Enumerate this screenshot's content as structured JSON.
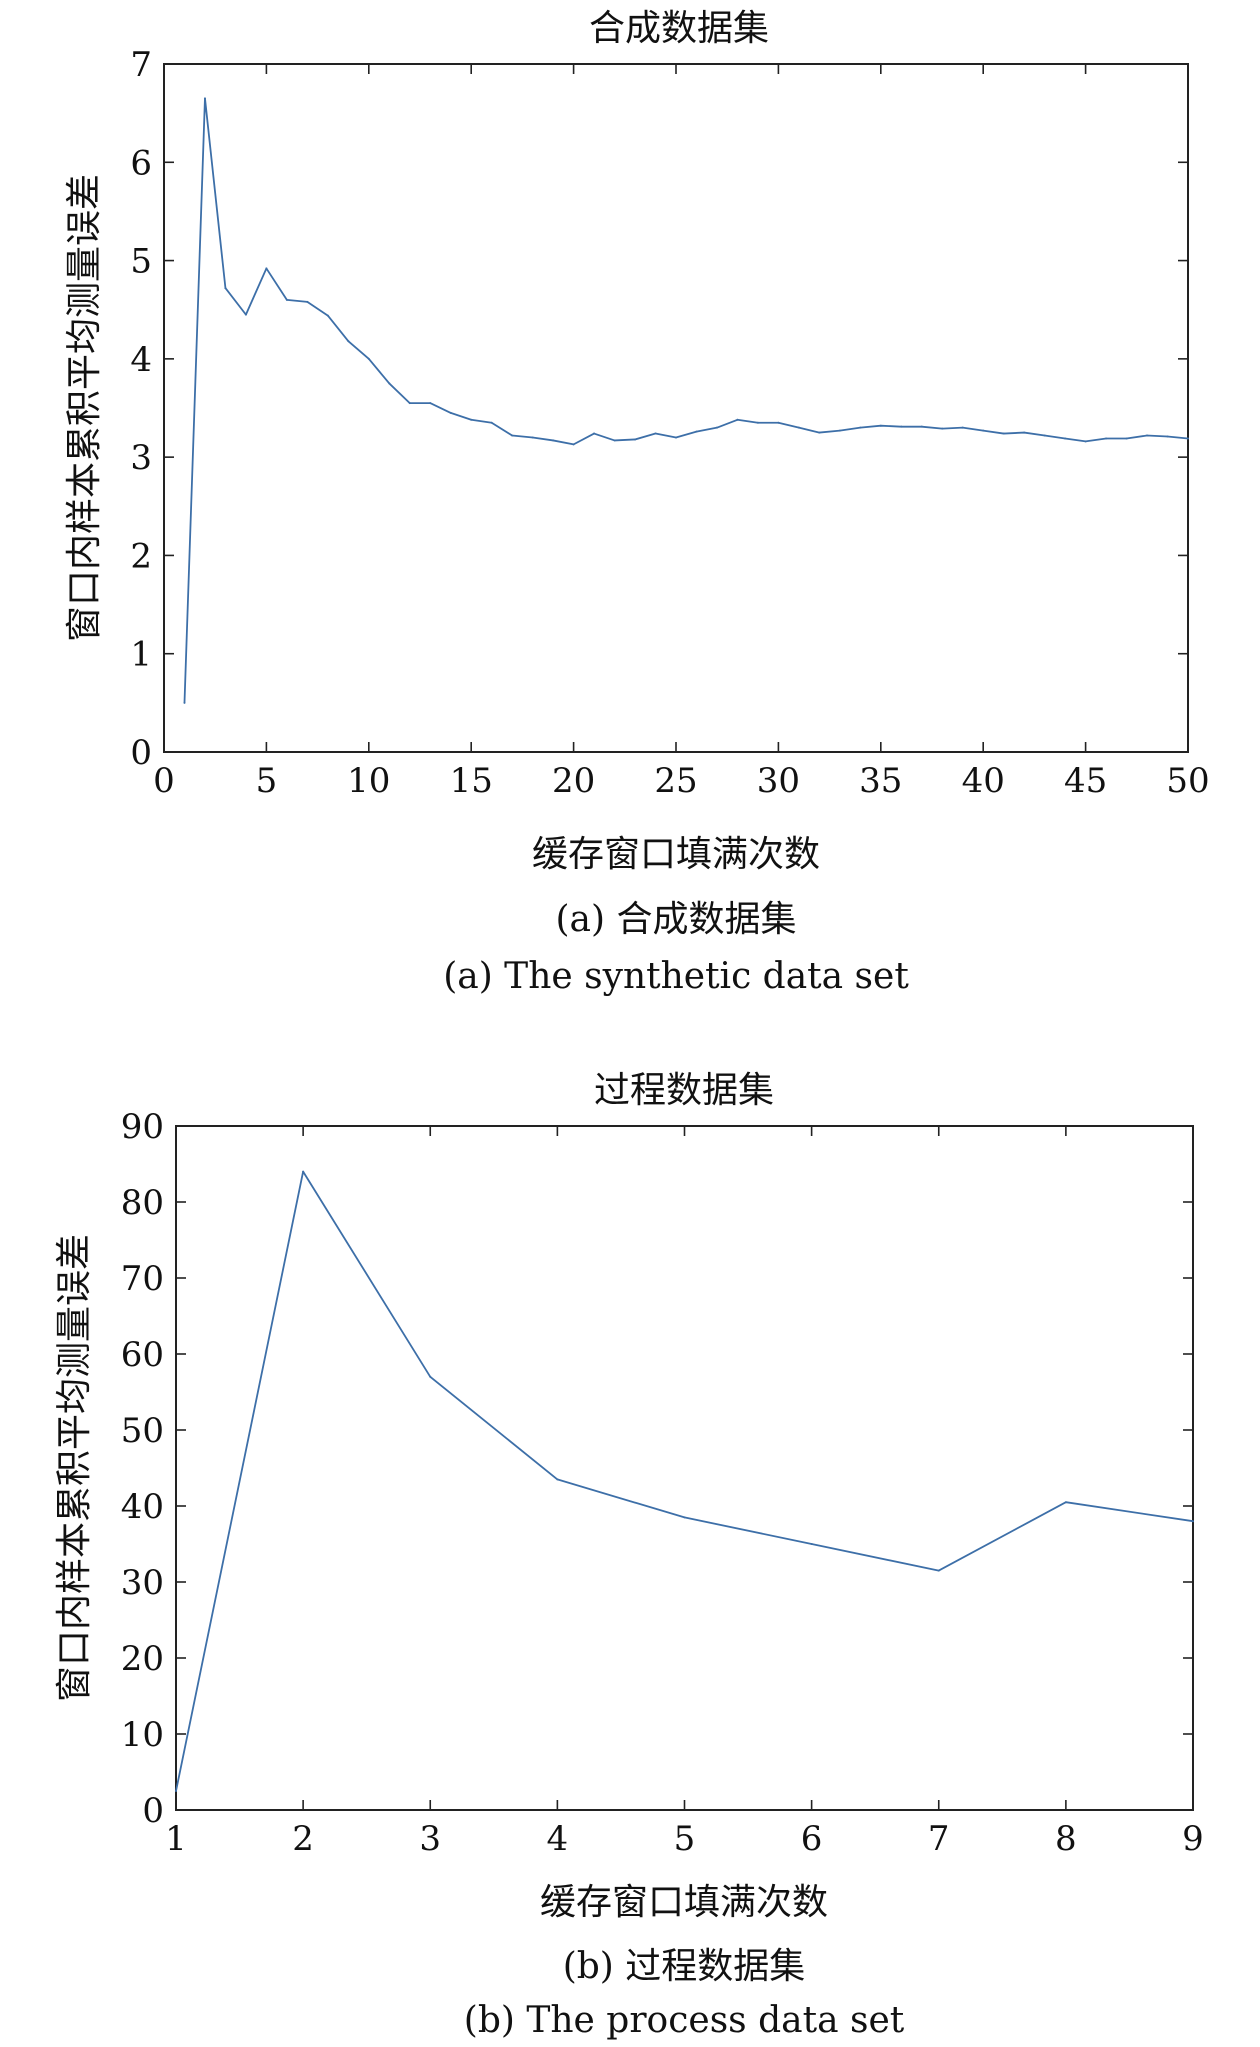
{
  "chart_data": [
    {
      "type": "line",
      "title": "合成数据集",
      "xlabel": "缓存窗口填满次数",
      "ylabel": "窗口内样本累积平均测量误差",
      "xlim": [
        0,
        50
      ],
      "ylim": [
        0,
        7
      ],
      "xticks": [
        0,
        5,
        10,
        15,
        20,
        25,
        30,
        35,
        40,
        45,
        50
      ],
      "yticks": [
        0,
        1,
        2,
        3,
        4,
        5,
        6,
        7
      ],
      "grid": false,
      "legend": "none",
      "caption_cn": "(a) 合成数据集",
      "caption_en": "(a) The synthetic data set",
      "series": [
        {
          "color": "#3d6fa8",
          "x": [
            1,
            2,
            3,
            4,
            5,
            6,
            7,
            8,
            9,
            10,
            11,
            12,
            13,
            14,
            15,
            16,
            17,
            18,
            19,
            20,
            21,
            22,
            23,
            24,
            25,
            26,
            27,
            28,
            29,
            30,
            31,
            32,
            33,
            34,
            35,
            36,
            37,
            38,
            39,
            40,
            41,
            42,
            43,
            44,
            45,
            46,
            47,
            48,
            49,
            50
          ],
          "y": [
            0.5,
            6.65,
            4.72,
            4.45,
            4.92,
            4.6,
            4.58,
            4.44,
            4.18,
            4.0,
            3.75,
            3.55,
            3.55,
            3.45,
            3.38,
            3.35,
            3.22,
            3.2,
            3.17,
            3.13,
            3.24,
            3.17,
            3.18,
            3.24,
            3.2,
            3.26,
            3.3,
            3.38,
            3.35,
            3.35,
            3.3,
            3.25,
            3.27,
            3.3,
            3.32,
            3.31,
            3.31,
            3.29,
            3.3,
            3.27,
            3.24,
            3.25,
            3.22,
            3.19,
            3.16,
            3.19,
            3.19,
            3.22,
            3.21,
            3.19
          ]
        }
      ]
    },
    {
      "type": "line",
      "title": "过程数据集",
      "xlabel": "缓存窗口填满次数",
      "ylabel": "窗口内样本累积平均测量误差",
      "xlim": [
        1,
        9
      ],
      "ylim": [
        0,
        90
      ],
      "xticks": [
        1,
        2,
        3,
        4,
        5,
        6,
        7,
        8,
        9
      ],
      "yticks": [
        0,
        10,
        20,
        30,
        40,
        50,
        60,
        70,
        80,
        90
      ],
      "grid": false,
      "legend": "none",
      "caption_cn": "(b) 过程数据集",
      "caption_en": "(b) The process data set",
      "series": [
        {
          "color": "#3d6fa8",
          "x": [
            1,
            2,
            3,
            4,
            5,
            6,
            7,
            8,
            9
          ],
          "y": [
            2.5,
            84.0,
            57.0,
            43.5,
            38.5,
            35.0,
            31.5,
            40.5,
            38.0
          ]
        }
      ]
    }
  ]
}
